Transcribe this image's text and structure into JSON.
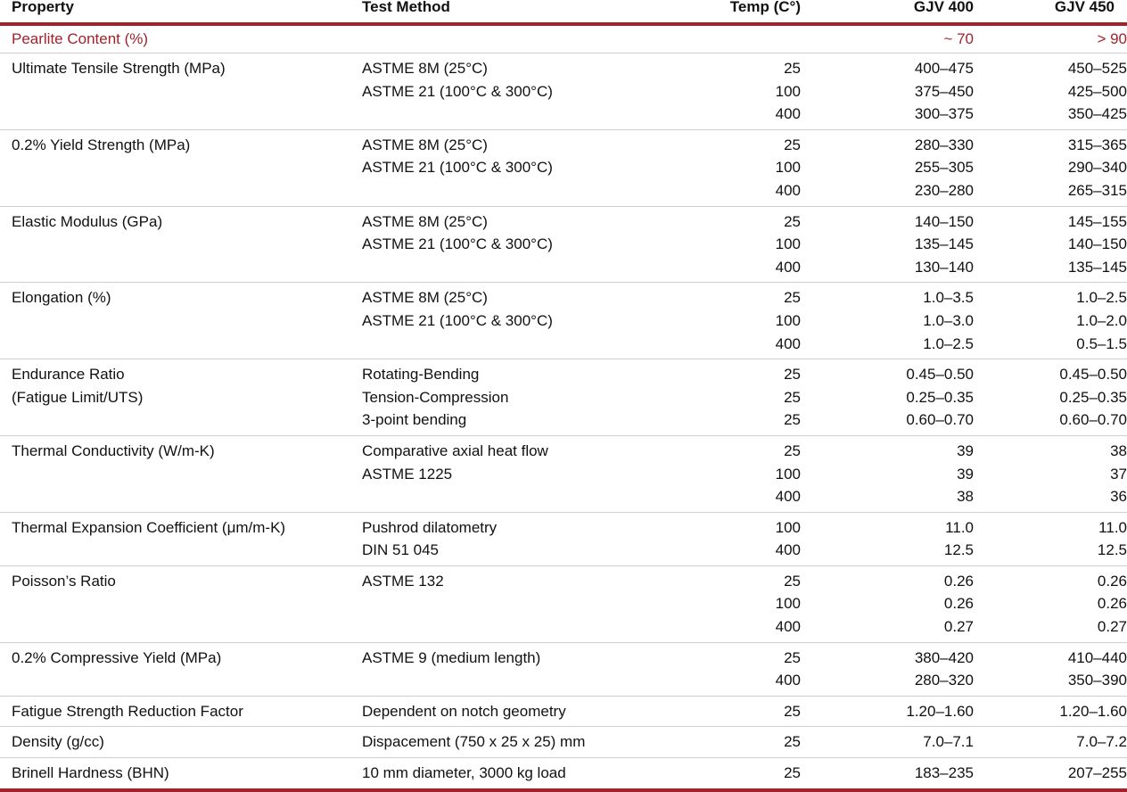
{
  "headers": {
    "property": "Property",
    "method": "Test Method",
    "temp": "Temp (C°)",
    "gjv400": "GJV 400",
    "gjv450": "GJV 450"
  },
  "pearlite": {
    "label": "Pearlite Content (%)",
    "gjv400": "~ 70",
    "gjv450": "> 90"
  },
  "rows": [
    {
      "property": [
        "Ultimate Tensile Strength (MPa)"
      ],
      "methods": [
        "ASTME 8M (25°C)",
        "ASTME 21 (100°C & 300°C)"
      ],
      "temps": [
        "25",
        "100",
        "400"
      ],
      "gjv400": [
        "400–475",
        "375–450",
        "300–375"
      ],
      "gjv450": [
        "450–525",
        "425–500",
        "350–425"
      ]
    },
    {
      "property": [
        "0.2% Yield Strength (MPa)"
      ],
      "methods": [
        "ASTME 8M (25°C)",
        "ASTME 21 (100°C & 300°C)"
      ],
      "temps": [
        "25",
        "100",
        "400"
      ],
      "gjv400": [
        "280–330",
        "255–305",
        "230–280"
      ],
      "gjv450": [
        "315–365",
        "290–340",
        "265–315"
      ]
    },
    {
      "property": [
        "Elastic Modulus (GPa)"
      ],
      "methods": [
        "ASTME 8M (25°C)",
        "ASTME 21 (100°C & 300°C)"
      ],
      "temps": [
        "25",
        "100",
        "400"
      ],
      "gjv400": [
        "140–150",
        "135–145",
        "130–140"
      ],
      "gjv450": [
        "145–155",
        "140–150",
        "135–145"
      ]
    },
    {
      "property": [
        "Elongation (%)"
      ],
      "methods": [
        "ASTME 8M (25°C)",
        "ASTME 21 (100°C & 300°C)"
      ],
      "temps": [
        "25",
        "100",
        "400"
      ],
      "gjv400": [
        "1.0–3.5",
        "1.0–3.0",
        "1.0–2.5"
      ],
      "gjv450": [
        "1.0–2.5",
        "1.0–2.0",
        "0.5–1.5"
      ]
    },
    {
      "property": [
        "Endurance Ratio",
        "(Fatigue Limit/UTS)"
      ],
      "methods": [
        "Rotating-Bending",
        "Tension-Compression",
        "3-point bending"
      ],
      "temps": [
        "25",
        "25",
        "25"
      ],
      "gjv400": [
        "0.45–0.50",
        "0.25–0.35",
        "0.60–0.70"
      ],
      "gjv450": [
        "0.45–0.50",
        "0.25–0.35",
        "0.60–0.70"
      ]
    },
    {
      "property": [
        "Thermal Conductivity (W/m-K)"
      ],
      "methods": [
        "Comparative axial heat flow",
        "ASTME 1225"
      ],
      "temps": [
        "25",
        "100",
        "400"
      ],
      "gjv400": [
        "39",
        "39",
        "38"
      ],
      "gjv450": [
        "38",
        "37",
        "36"
      ]
    },
    {
      "property": [
        "Thermal Expansion Coefficient (μm/m-K)"
      ],
      "methods": [
        "Pushrod dilatometry",
        "DIN 51 045"
      ],
      "temps": [
        "100",
        "400"
      ],
      "gjv400": [
        "11.0",
        "12.5"
      ],
      "gjv450": [
        "11.0",
        "12.5"
      ]
    },
    {
      "property": [
        "Poisson’s Ratio"
      ],
      "methods": [
        "ASTME 132"
      ],
      "temps": [
        "25",
        "100",
        "400"
      ],
      "gjv400": [
        "0.26",
        "0.26",
        "0.27"
      ],
      "gjv450": [
        "0.26",
        "0.26",
        "0.27"
      ]
    },
    {
      "property": [
        "0.2% Compressive Yield (MPa)"
      ],
      "methods": [
        "ASTME 9 (medium length)"
      ],
      "temps": [
        "25",
        "400"
      ],
      "gjv400": [
        "380–420",
        "280–320"
      ],
      "gjv450": [
        "410–440",
        "350–390"
      ]
    },
    {
      "property": [
        "Fatigue Strength Reduction Factor"
      ],
      "methods": [
        "Dependent on notch geometry"
      ],
      "temps": [
        "25"
      ],
      "gjv400": [
        "1.20–1.60"
      ],
      "gjv450": [
        "1.20–1.60"
      ]
    },
    {
      "property": [
        "Density (g/cc)"
      ],
      "methods": [
        "Dispacement (750 x 25 x 25) mm"
      ],
      "temps": [
        "25"
      ],
      "gjv400": [
        "7.0–7.1"
      ],
      "gjv450": [
        "7.0–7.2"
      ]
    },
    {
      "property": [
        "Brinell Hardness (BHN)"
      ],
      "methods": [
        "10 mm diameter, 3000 kg load"
      ],
      "temps": [
        "25"
      ],
      "gjv400": [
        "183–235"
      ],
      "gjv450": [
        "207–255"
      ]
    }
  ]
}
